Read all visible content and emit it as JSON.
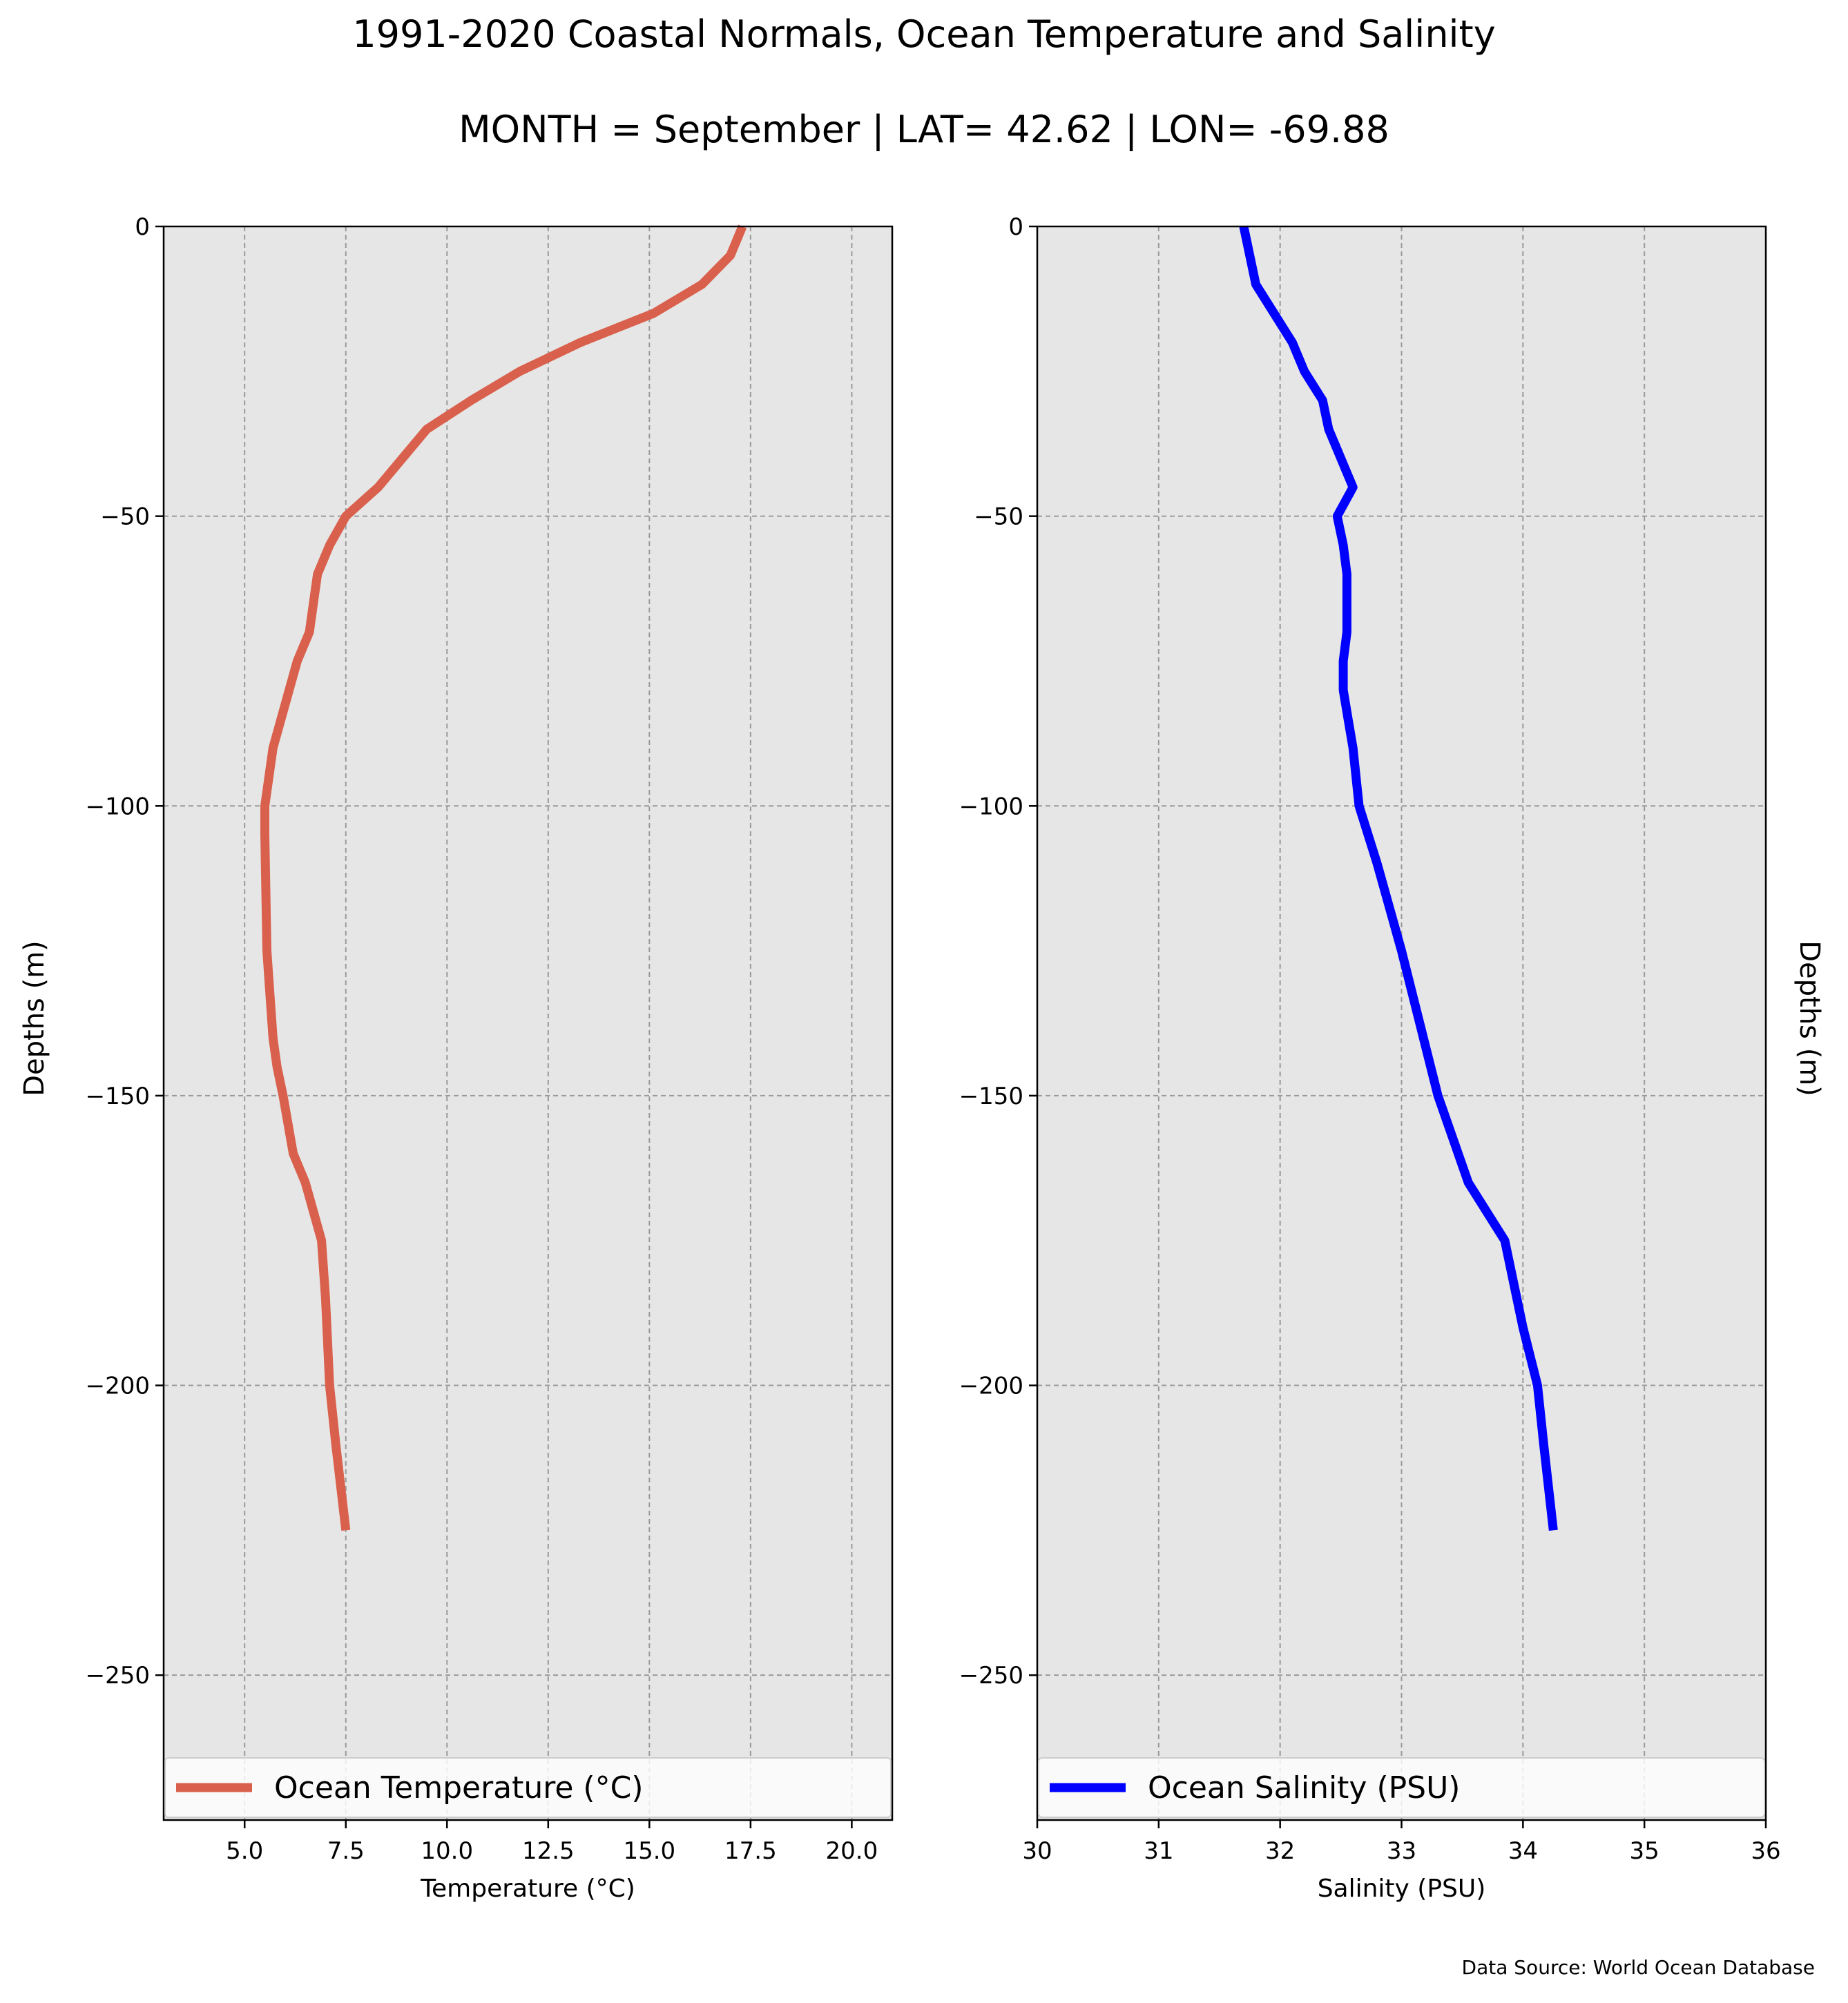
{
  "title": "1991-2020 Coastal Normals, Ocean Temperature and Salinity",
  "subtitle": "MONTH = September | LAT= 42.62 | LON= -69.88",
  "source_note": "Data Source: World Ocean Database",
  "colors": {
    "panel_background": "#e6e6e6",
    "temperature_line": "#d9604c",
    "salinity_line": "#0000ff",
    "grid": "#9a9a9a"
  },
  "chart_data": [
    {
      "type": "line",
      "xlabel": "Temperature ($^\\circ$C)",
      "xlabel_display": "Temperature (°C)",
      "ylabel": "Depths (m)",
      "xlim": [
        3.0,
        21.0
      ],
      "ylim": [
        -275,
        0
      ],
      "xticks": [
        5.0,
        7.5,
        10.0,
        12.5,
        15.0,
        17.5,
        20.0
      ],
      "xtick_labels": [
        "5.0",
        "7.5",
        "10.0",
        "12.5",
        "15.0",
        "17.5",
        "20.0"
      ],
      "yticks": [
        0,
        -50,
        -100,
        -150,
        -200,
        -250
      ],
      "ytick_labels": [
        "0",
        "−50",
        "−100",
        "−150",
        "−200",
        "−250"
      ],
      "grid": true,
      "legend_position": "bottom",
      "series": [
        {
          "name": "Ocean Temperature (°C)",
          "color": "#d9604c",
          "x": [
            17.3,
            17.0,
            16.3,
            15.1,
            13.3,
            11.8,
            10.6,
            9.5,
            8.9,
            8.3,
            7.5,
            7.1,
            6.8,
            6.6,
            6.3,
            6.1,
            5.9,
            5.7,
            5.6,
            5.5,
            5.5,
            5.55,
            5.6,
            5.7,
            5.8,
            5.95,
            6.2,
            6.5,
            6.9,
            7.0,
            7.1,
            7.25,
            7.5
          ],
          "y": [
            0,
            -5,
            -10,
            -15,
            -20,
            -25,
            -30,
            -35,
            -40,
            -45,
            -50,
            -55,
            -60,
            -70,
            -75,
            -80,
            -85,
            -90,
            -95,
            -100,
            -105,
            -125,
            -130,
            -140,
            -145,
            -150,
            -160,
            -165,
            -175,
            -185,
            -200,
            -210,
            -225
          ]
        }
      ]
    },
    {
      "type": "line",
      "xlabel": "Salinity (PSU)",
      "ylabel": "Depths (m)",
      "xlim": [
        30,
        36
      ],
      "ylim": [
        -275,
        0
      ],
      "xticks": [
        30,
        31,
        32,
        33,
        34,
        35,
        36
      ],
      "xtick_labels": [
        "30",
        "31",
        "32",
        "33",
        "34",
        "35",
        "36"
      ],
      "yticks": [
        0,
        -50,
        -100,
        -150,
        -200,
        -250
      ],
      "ytick_labels": [
        "0",
        "−50",
        "−100",
        "−150",
        "−200",
        "−250"
      ],
      "grid": true,
      "legend_position": "bottom",
      "series": [
        {
          "name": "Ocean Salinity (PSU)",
          "color": "#0000ff",
          "x": [
            31.7,
            31.75,
            31.8,
            31.95,
            32.1,
            32.2,
            32.35,
            32.4,
            32.5,
            32.6,
            32.47,
            32.52,
            32.55,
            32.55,
            32.52,
            32.52,
            32.56,
            32.6,
            32.65,
            32.8,
            33.0,
            33.3,
            33.55,
            33.85,
            34.0,
            34.12,
            34.17,
            34.25
          ],
          "y": [
            0,
            -5,
            -10,
            -15,
            -20,
            -25,
            -30,
            -35,
            -40,
            -45,
            -50,
            -55,
            -60,
            -70,
            -75,
            -80,
            -85,
            -90,
            -100,
            -110,
            -125,
            -150,
            -165,
            -175,
            -190,
            -200,
            -210,
            -225
          ]
        }
      ]
    }
  ]
}
